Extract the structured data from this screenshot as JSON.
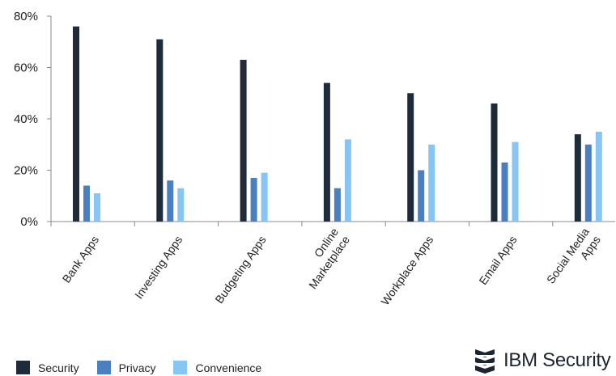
{
  "chart_data": {
    "type": "bar",
    "categories": [
      "Bank Apps",
      "Investing Apps",
      "Budgeting Apps",
      "Online Marketplace",
      "Workplace Apps",
      "Email Apps",
      "Social Media Apps"
    ],
    "category_lines": [
      [
        "Bank Apps"
      ],
      [
        "Investing Apps"
      ],
      [
        "Budgeting Apps"
      ],
      [
        "Online",
        "Marketplace"
      ],
      [
        "Workplace Apps"
      ],
      [
        "Email Apps"
      ],
      [
        "Social Media",
        "Apps"
      ]
    ],
    "series": [
      {
        "name": "Security",
        "color": "#1d2b3a",
        "values": [
          76,
          71,
          63,
          54,
          50,
          46,
          34
        ]
      },
      {
        "name": "Privacy",
        "color": "#4a7fc0",
        "values": [
          14,
          16,
          17,
          13,
          20,
          23,
          30
        ]
      },
      {
        "name": "Convenience",
        "color": "#86c5f4",
        "values": [
          11,
          13,
          19,
          32,
          30,
          31,
          35
        ]
      }
    ],
    "ylim": [
      0,
      80
    ],
    "yticks": [
      0,
      20,
      40,
      60,
      80
    ],
    "ytick_labels": [
      "0%",
      "20%",
      "40%",
      "60%",
      "80%"
    ],
    "y_unit": "%",
    "grid": false,
    "legend_position": "bottom-left"
  },
  "brand": {
    "text": "IBM Security",
    "icon": "ibm-security-logo-icon"
  }
}
